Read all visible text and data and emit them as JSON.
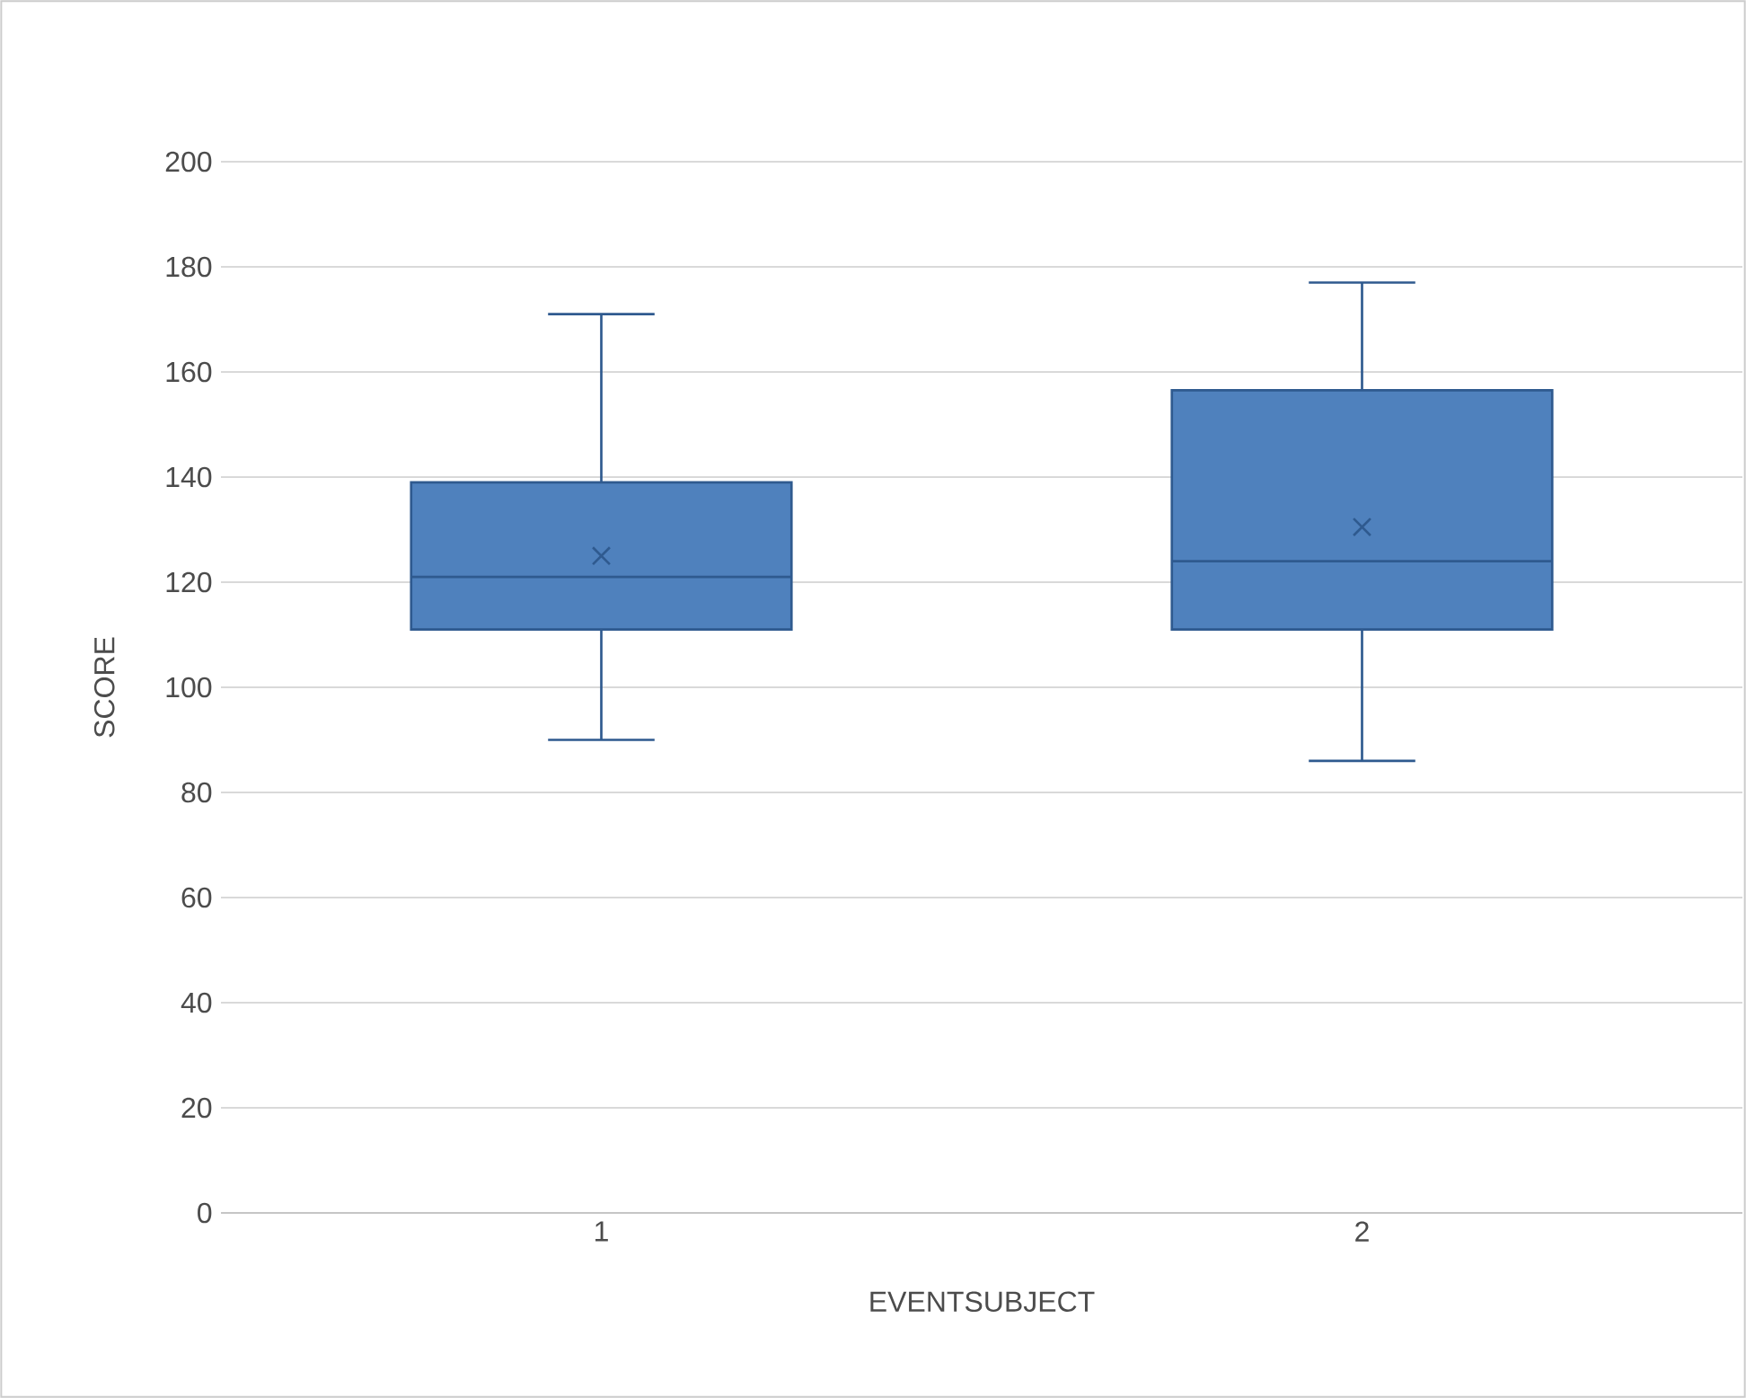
{
  "chart_data": {
    "type": "box",
    "xlabel": "EVENTSUBJECT",
    "ylabel": "SCORE",
    "categories": [
      "1",
      "2"
    ],
    "color": "#4f81bd",
    "boxes": [
      {
        "low": 90,
        "q1": 111,
        "median": 121,
        "q3": 139,
        "high": 171,
        "mean": 125
      },
      {
        "low": 86,
        "q1": 111,
        "median": 124,
        "q3": 156.5,
        "high": 177,
        "mean": 130.5
      }
    ],
    "ylim": [
      0,
      200
    ],
    "yticks": [
      0,
      20,
      40,
      60,
      80,
      100,
      120,
      140,
      160,
      180,
      200
    ],
    "grid": "y"
  }
}
